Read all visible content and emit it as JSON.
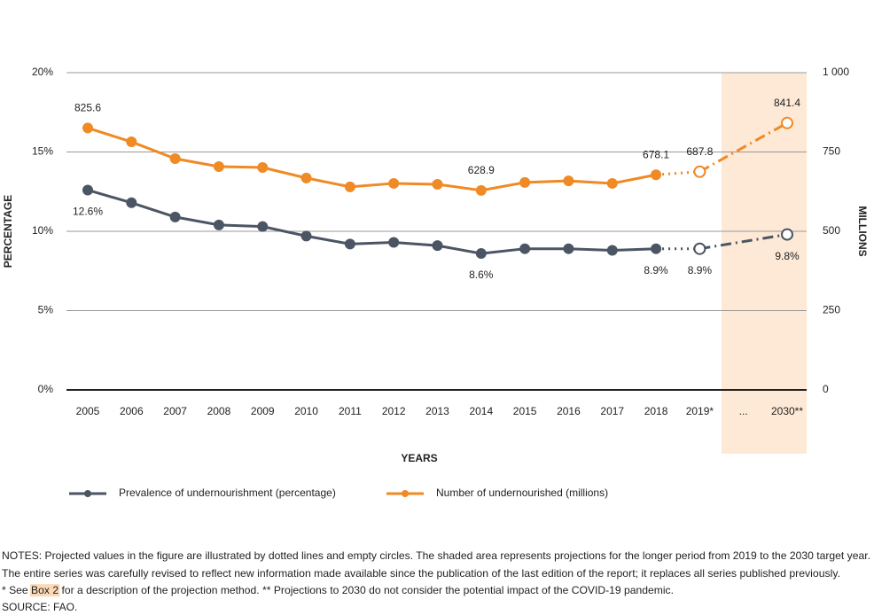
{
  "chart_data": {
    "type": "line",
    "categories": [
      "2005",
      "2006",
      "2007",
      "2008",
      "2009",
      "2010",
      "2011",
      "2012",
      "2013",
      "2014",
      "2015",
      "2016",
      "2017",
      "2018",
      "2019*",
      "...",
      "2030**"
    ],
    "x_label": "YEARS",
    "y_label": "PERCENTAGE",
    "y2_label": "MILLIONS",
    "ylim": [
      0,
      20
    ],
    "yticks": [
      {
        "value": 0,
        "label": "0%"
      },
      {
        "value": 5,
        "label": "5%"
      },
      {
        "value": 10,
        "label": "10%"
      },
      {
        "value": 15,
        "label": "15%"
      },
      {
        "value": 20,
        "label": "20%"
      }
    ],
    "y2lim": [
      0,
      1000
    ],
    "y2ticks": [
      0,
      250,
      500,
      750,
      {
        "value": 1000,
        "label": "1 000"
      }
    ],
    "grid": true,
    "projection_from": 14,
    "shaded_from": 15,
    "shade_color": "#fde9d6",
    "series": [
      {
        "name": "Prevalence of undernourishment (percentage)",
        "color": "#4b5563",
        "label_position": "below",
        "values": [
          12.6,
          11.8,
          10.9,
          10.4,
          10.3,
          9.7,
          9.2,
          9.3,
          9.1,
          8.6,
          8.9,
          8.9,
          8.8,
          8.9,
          8.9,
          null,
          9.8
        ],
        "value_labels": [
          "12.6%",
          null,
          null,
          null,
          null,
          null,
          null,
          null,
          null,
          "8.6%",
          null,
          null,
          null,
          "8.9%",
          "8.9%",
          null,
          "9.8%"
        ]
      },
      {
        "name": "Number of undernourished (millions)",
        "color": "#ef8a25",
        "axis": "y2",
        "label_position": "above",
        "values": [
          825.6,
          782,
          729,
          704,
          701,
          668,
          640,
          651,
          648,
          628.9,
          654,
          659,
          651,
          678.1,
          687.8,
          null,
          841.4
        ],
        "value_labels": [
          "825.6",
          null,
          null,
          null,
          null,
          null,
          null,
          null,
          null,
          "628.9",
          null,
          null,
          null,
          "678.1",
          "687.8",
          null,
          "841.4"
        ]
      }
    ]
  },
  "notes": {
    "line1": "NOTES: Projected values in the figure are illustrated by dotted lines and empty circles. The shaded area represents projections for the longer period from 2019 to the 2030 target year.",
    "line2": "The entire series was carefully revised to reflect new information made available since the publication of the last edition of the report; it replaces all series published previously.",
    "line3a": "* See ",
    "line3b": "Box 2",
    "line3c": " for a description of the projection method. ** Projections to 2030 do not consider the potential impact of the COVID-19 pandemic.",
    "line4": "SOURCE: FAO."
  }
}
